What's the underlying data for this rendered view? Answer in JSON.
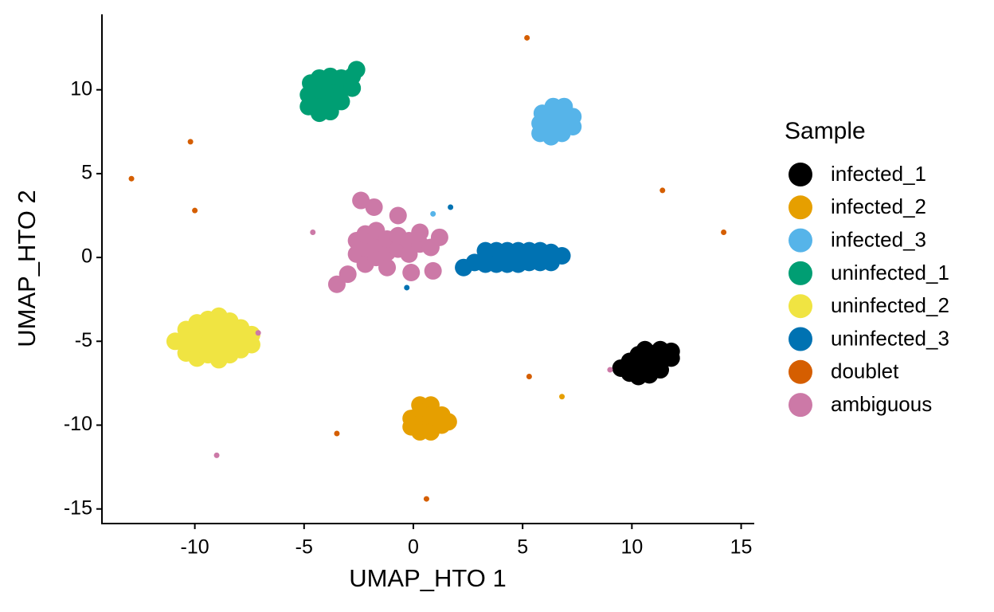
{
  "chart_data": {
    "type": "scatter",
    "xlabel": "UMAP_HTO 1",
    "ylabel": "UMAP_HTO 2",
    "xlim": [
      -14.25,
      15.6
    ],
    "ylim": [
      -15.87,
      14.5
    ],
    "xticks": [
      -10,
      -5,
      0,
      5,
      10,
      15
    ],
    "yticks": [
      -15,
      -10,
      -5,
      0,
      5,
      10
    ],
    "grid": false,
    "legend_title": "Sample",
    "legend": "right",
    "series": [
      {
        "name": "infected_1",
        "color": "#000000",
        "x": [
          9.5,
          9.9,
          9.9,
          10.3,
          10.3,
          10.3,
          10.8,
          10.8,
          10.8,
          11.3,
          11.3,
          11.3,
          11.8,
          11.8,
          10.6
        ],
        "y": [
          -6.6,
          -6.9,
          -6.2,
          -7.1,
          -6.5,
          -5.8,
          -7.0,
          -6.4,
          -5.7,
          -6.7,
          -6.1,
          -5.5,
          -6.0,
          -5.6,
          -5.5
        ]
      },
      {
        "name": "infected_2",
        "color": "#E69F00",
        "x": [
          -0.1,
          -0.1,
          0.3,
          0.3,
          0.3,
          0.3,
          0.8,
          0.8,
          0.8,
          0.8,
          1.3,
          1.3,
          1.6,
          6.8
        ],
        "y": [
          -9.6,
          -10.1,
          -8.8,
          -9.3,
          -9.9,
          -10.4,
          -8.8,
          -9.4,
          -9.9,
          -10.4,
          -9.4,
          -10.0,
          -9.8,
          -8.3
        ]
      },
      {
        "name": "infected_3",
        "color": "#56B4E9",
        "x": [
          5.8,
          5.8,
          5.9,
          6.3,
          6.3,
          6.3,
          6.4,
          6.8,
          6.8,
          6.8,
          6.9,
          7.3,
          7.3,
          0.9
        ],
        "y": [
          7.4,
          8.0,
          8.6,
          7.2,
          7.8,
          8.4,
          9.0,
          7.4,
          8.0,
          8.6,
          9.0,
          7.8,
          8.4,
          2.6
        ]
      },
      {
        "name": "uninfected_1",
        "color": "#009E73",
        "x": [
          -4.8,
          -4.8,
          -4.7,
          -4.3,
          -4.3,
          -4.3,
          -4.3,
          -3.8,
          -3.8,
          -3.8,
          -3.8,
          -3.3,
          -3.3,
          -3.3,
          -2.8,
          -2.8,
          -2.6
        ],
        "y": [
          9.0,
          9.7,
          10.4,
          8.6,
          9.3,
          10.0,
          10.7,
          8.7,
          9.4,
          10.1,
          10.8,
          9.3,
          10.0,
          10.7,
          10.1,
          10.8,
          11.2
        ]
      },
      {
        "name": "uninfected_2",
        "color": "#F0E442",
        "x": [
          -10.9,
          -10.4,
          -10.4,
          -10.4,
          -9.9,
          -9.9,
          -9.9,
          -9.9,
          -9.4,
          -9.4,
          -9.4,
          -9.4,
          -8.9,
          -8.9,
          -8.9,
          -8.9,
          -8.9,
          -8.4,
          -8.4,
          -8.4,
          -8.4,
          -7.9,
          -7.9,
          -7.9,
          -7.4,
          -7.4
        ],
        "y": [
          -5.0,
          -4.3,
          -5.0,
          -5.7,
          -3.9,
          -4.6,
          -5.3,
          -6.0,
          -3.7,
          -4.4,
          -5.1,
          -5.8,
          -3.5,
          -4.2,
          -4.9,
          -5.6,
          -6.1,
          -3.8,
          -4.5,
          -5.2,
          -5.8,
          -4.2,
          -4.9,
          -5.5,
          -4.6,
          -5.2
        ]
      },
      {
        "name": "uninfected_3",
        "color": "#0072B2",
        "x": [
          2.8,
          3.3,
          3.3,
          3.8,
          3.8,
          4.3,
          4.3,
          4.8,
          4.8,
          5.3,
          5.3,
          5.8,
          5.8,
          6.3,
          6.3,
          6.8,
          2.3,
          1.7,
          -0.3,
          1.2
        ],
        "y": [
          -0.3,
          0.4,
          -0.4,
          0.4,
          -0.4,
          0.4,
          -0.4,
          0.4,
          -0.4,
          0.4,
          -0.3,
          0.4,
          -0.3,
          0.3,
          -0.3,
          0.1,
          -0.6,
          3.0,
          -1.8,
          0.9
        ]
      },
      {
        "name": "doublet",
        "color": "#D55E00",
        "x": [
          5.2,
          -10.2,
          -12.9,
          -10.0,
          11.4,
          14.2,
          5.3,
          -3.5,
          0.6
        ],
        "y": [
          13.1,
          6.9,
          4.7,
          2.8,
          4.0,
          1.5,
          -7.1,
          -10.5,
          -14.4
        ]
      },
      {
        "name": "ambiguous",
        "color": "#CC79A7",
        "x": [
          -3.5,
          -3.0,
          -2.6,
          -2.6,
          -2.2,
          -2.2,
          -2.2,
          -2.4,
          -1.8,
          -1.7,
          -1.7,
          -1.7,
          -1.2,
          -1.2,
          -1.2,
          -0.7,
          -0.7,
          -0.7,
          -0.2,
          -0.2,
          -0.1,
          0.3,
          0.3,
          0.8,
          0.9,
          1.2,
          -4.6,
          -9.0,
          -7.1,
          9.0
        ],
        "y": [
          -1.6,
          -1.0,
          0.2,
          1.0,
          -0.4,
          0.6,
          1.4,
          3.4,
          3.0,
          0.0,
          0.8,
          1.6,
          -0.6,
          0.3,
          1.1,
          0.5,
          1.3,
          2.5,
          0.2,
          1.0,
          -0.9,
          0.8,
          1.5,
          0.6,
          -0.8,
          1.2,
          1.5,
          -11.8,
          -4.5,
          -6.7
        ]
      }
    ]
  }
}
